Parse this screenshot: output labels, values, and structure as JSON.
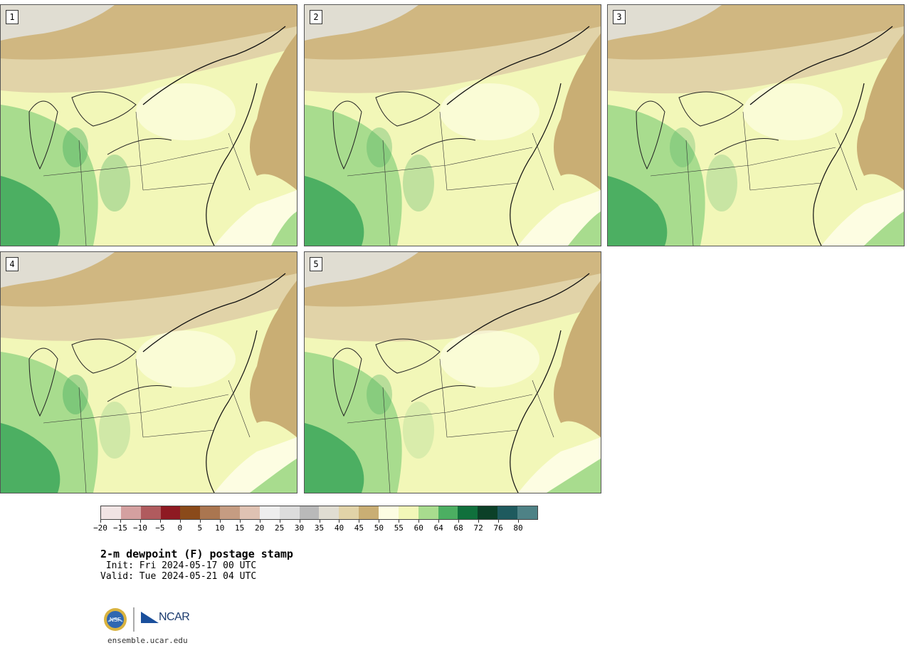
{
  "panels": [
    {
      "num": "1"
    },
    {
      "num": "2"
    },
    {
      "num": "3"
    },
    {
      "num": "4"
    },
    {
      "num": "5"
    }
  ],
  "colorbar": {
    "colors": [
      "#f1e4e4",
      "#d4a0a0",
      "#b05b5e",
      "#8e1a22",
      "#8a4a1a",
      "#aa7650",
      "#c59c82",
      "#dfc2b3",
      "#eeeeee",
      "#dcdcdc",
      "#b9b9b9",
      "#e0ddd2",
      "#e1d3a8",
      "#c9ae74",
      "#fdfde2",
      "#f2f7b8",
      "#a8dc8e",
      "#4caf62",
      "#10703c",
      "#0c4028",
      "#1e5a5e",
      "#4e8286"
    ],
    "labels": [
      "−20",
      "−15",
      "−10",
      "−5",
      "0",
      "5",
      "10",
      "15",
      "20",
      "25",
      "30",
      "35",
      "40",
      "45",
      "50",
      "55",
      "60",
      "64",
      "68",
      "72",
      "76",
      "80"
    ]
  },
  "title": "2-m dewpoint (F) postage stamp",
  "init": " Init: Fri 2024-05-17 00 UTC",
  "valid": "Valid: Tue 2024-05-21 04 UTC",
  "logo": {
    "nsf": "NSF",
    "ncar": "NCAR"
  },
  "url": "ensemble.ucar.edu"
}
